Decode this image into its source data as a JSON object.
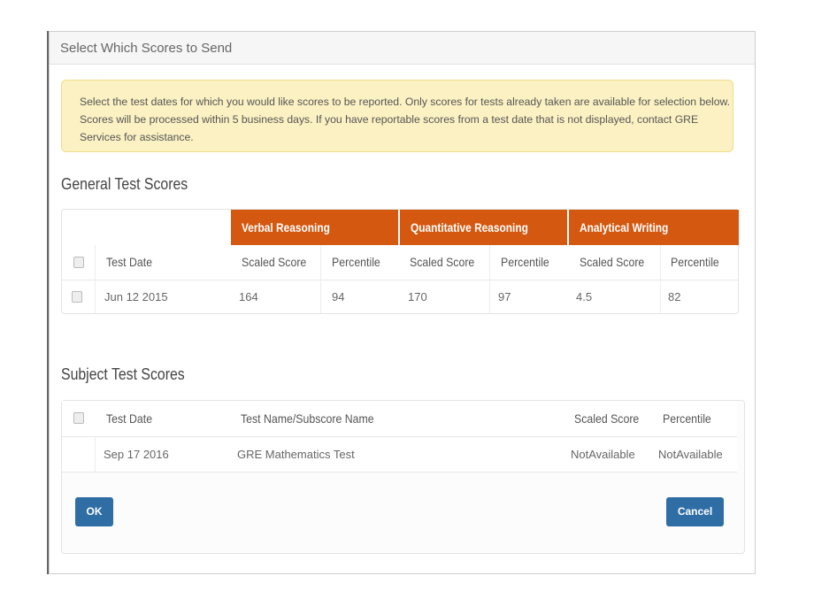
{
  "modal": {
    "title": "Select Which Scores to Send"
  },
  "alert": {
    "text": "Select the test dates for which you would like scores to be reported. Only scores for tests already taken are available for selection below. Scores will be processed within 5 business days. If you have reportable scores from a test date that is not displayed, contact GRE Services for assistance."
  },
  "general": {
    "heading": "General Test Scores",
    "groups": [
      "Verbal Reasoning",
      "Quantitative Reasoning",
      "Analytical Writing"
    ],
    "columns": [
      "Test Date",
      "Scaled Score",
      "Percentile",
      "Scaled Score",
      "Percentile",
      "Scaled Score",
      "Percentile"
    ],
    "rows": [
      {
        "date": "Jun 12 2015",
        "values": [
          "164",
          "94",
          "170",
          "97",
          "4.5",
          "82"
        ]
      }
    ]
  },
  "subject": {
    "heading": "Subject Test Scores",
    "columns": [
      "Test Date",
      "Test Name/Subscore Name",
      "Scaled Score",
      "Percentile"
    ],
    "rows": [
      {
        "date": "Sep 17 2016",
        "name": "GRE Mathematics Test",
        "scaled": "NotAvailable",
        "percentile": "NotAvailable"
      }
    ]
  },
  "buttons": {
    "ok": "OK",
    "cancel": "Cancel"
  },
  "colors": {
    "header_band": "#d4580f",
    "button": "#2f6ea5",
    "alert_bg": "#fbf1c2"
  }
}
